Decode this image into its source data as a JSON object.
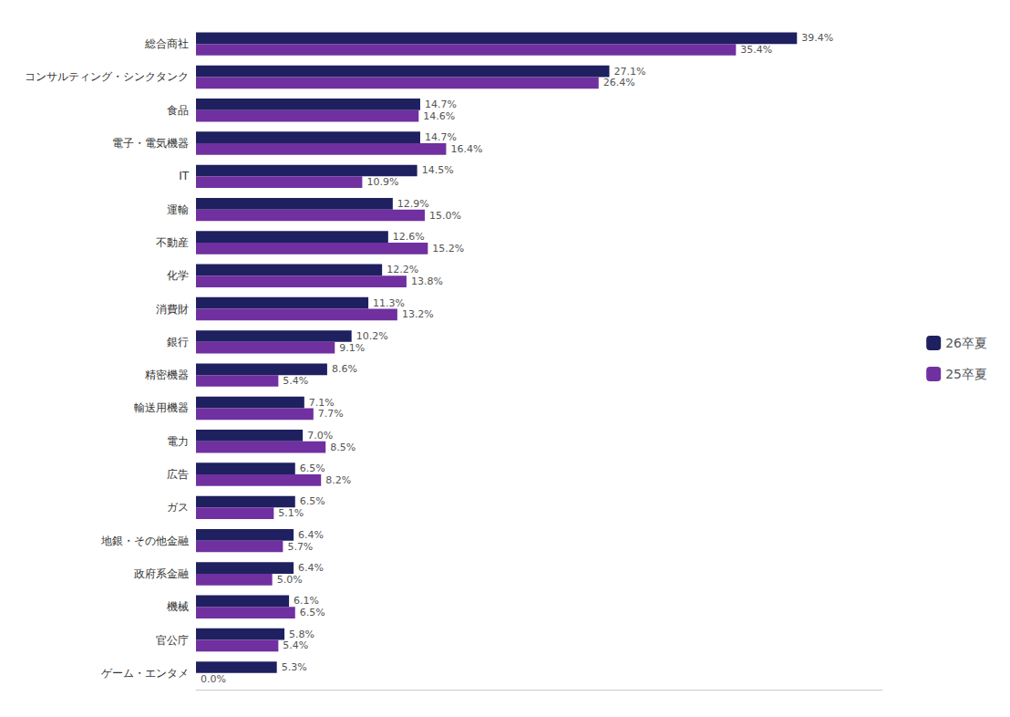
{
  "chart_data": {
    "type": "bar",
    "orientation": "horizontal",
    "categories": [
      "総合商社",
      "コンサルティング・シンクタンク",
      "食品",
      "電子・電気機器",
      "IT",
      "運輸",
      "不動産",
      "化学",
      "消費財",
      "銀行",
      "精密機器",
      "輸送用機器",
      "電力",
      "広告",
      "ガス",
      "地銀・その他金融",
      "政府系金融",
      "機械",
      "官公庁",
      "ゲーム・エンタメ"
    ],
    "series": [
      {
        "name": "26卒夏",
        "color": "#1F2060",
        "values": [
          39.4,
          27.1,
          14.7,
          14.7,
          14.5,
          12.9,
          12.6,
          12.2,
          11.3,
          10.2,
          8.6,
          7.1,
          7.0,
          6.5,
          6.5,
          6.4,
          6.4,
          6.1,
          5.8,
          5.3
        ],
        "value_labels": [
          "39.4%",
          "27.1%",
          "14.7%",
          "14.7%",
          "14.5%",
          "12.9%",
          "12.6%",
          "12.2%",
          "11.3%",
          "10.2%",
          "8.6%",
          "7.1%",
          "7.0%",
          "6.5%",
          "6.5%",
          "6.4%",
          "6.4%",
          "6.1%",
          "5.8%",
          "5.3%"
        ]
      },
      {
        "name": "25卒夏",
        "color": "#7030A0",
        "values": [
          35.4,
          26.4,
          14.6,
          16.4,
          10.9,
          15.0,
          15.2,
          13.8,
          13.2,
          9.1,
          5.4,
          7.7,
          8.5,
          8.2,
          5.1,
          5.7,
          5.0,
          6.5,
          5.4,
          0.0
        ],
        "value_labels": [
          "35.4%",
          "26.4%",
          "14.6%",
          "16.4%",
          "10.9%",
          "15.0%",
          "15.2%",
          "13.8%",
          "13.2%",
          "9.1%",
          "5.4%",
          "7.7%",
          "8.5%",
          "8.2%",
          "5.1%",
          "5.7%",
          "5.0%",
          "6.5%",
          "5.4%",
          "0.0%"
        ]
      }
    ],
    "xlim": [
      0,
      45
    ],
    "tick_labels": "y",
    "data_labels": true,
    "grid": false,
    "legend": "right"
  }
}
